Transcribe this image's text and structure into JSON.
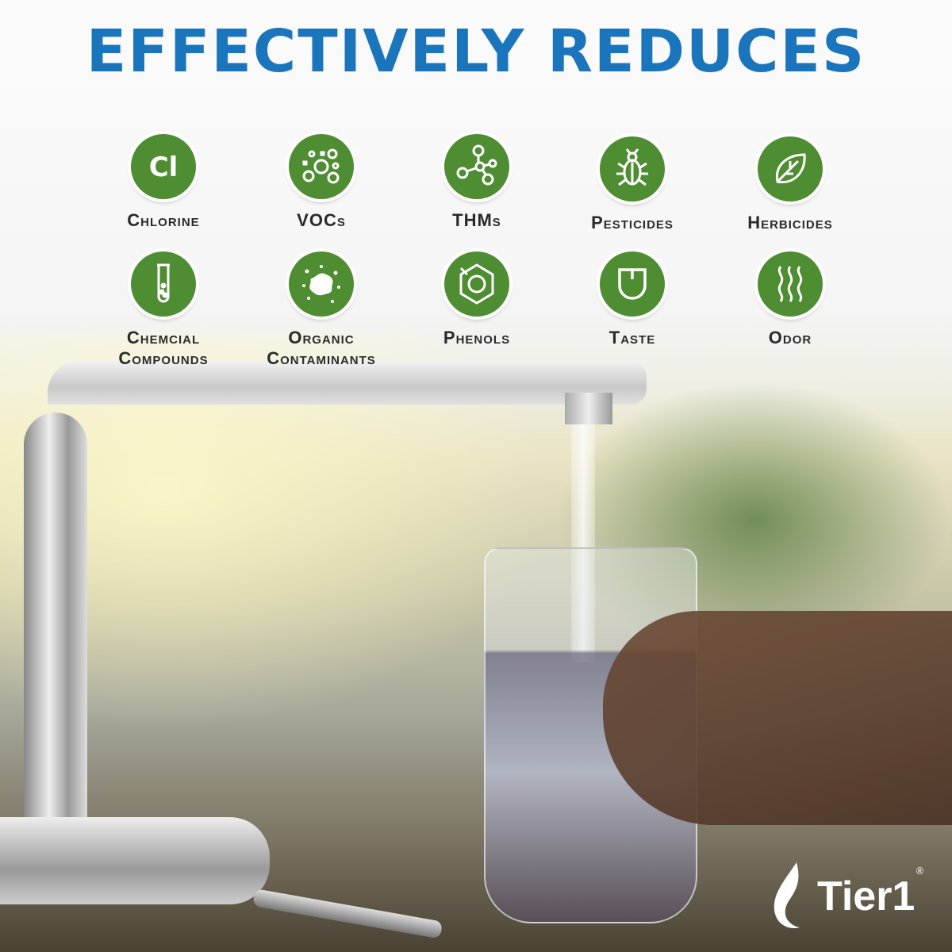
{
  "title": "EFFECTIVELY REDUCES",
  "items": [
    {
      "label": "Chlorine",
      "icon": "chlorine-icon",
      "icon_text": "Cl"
    },
    {
      "label": "VOCs",
      "icon": "bubbles-icon"
    },
    {
      "label": "THMs",
      "icon": "molecule-icon"
    },
    {
      "label": "Pesticides",
      "icon": "bug-icon"
    },
    {
      "label": "Herbicides",
      "icon": "leaf-icon"
    },
    {
      "label": "Chemcial",
      "label2": "Compounds",
      "icon": "test-tube-icon"
    },
    {
      "label": "Organic",
      "label2": "Contaminants",
      "icon": "splat-icon"
    },
    {
      "label": "Phenols",
      "icon": "phenol-ring-icon"
    },
    {
      "label": "Taste",
      "icon": "tongue-icon"
    },
    {
      "label": "Odor",
      "icon": "odor-waves-icon"
    }
  ],
  "brand": {
    "name": "Tier1",
    "reg": "®"
  },
  "colors": {
    "title": "#1a75bc",
    "icon_bg": "#4f8d33",
    "label": "#2a2a2a"
  }
}
